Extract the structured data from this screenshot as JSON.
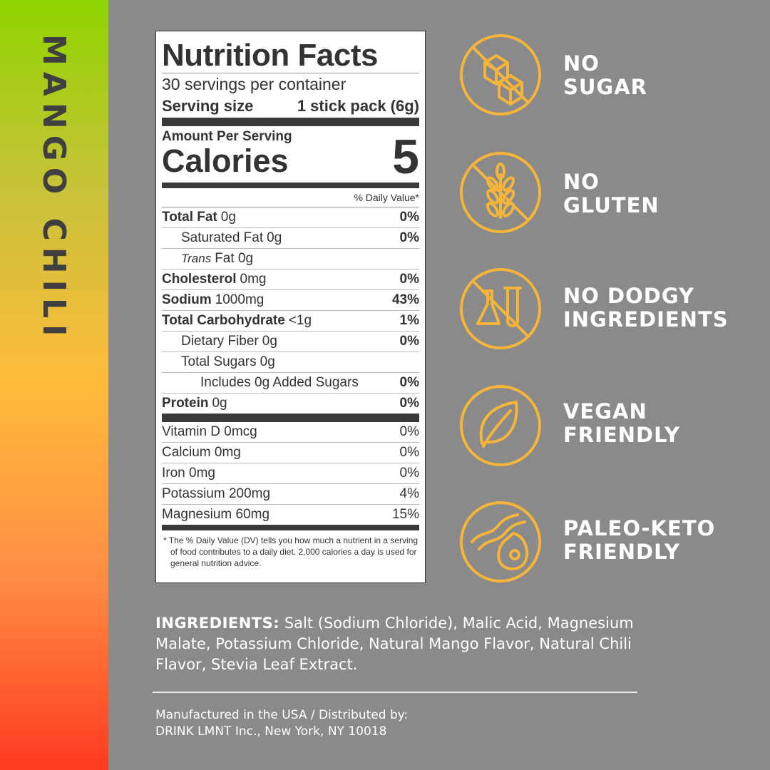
{
  "side_label": "MANGO CHILI",
  "nutrition_facts": {
    "title": "Nutrition Facts",
    "servings": "30 servings per container",
    "serving_size_label": "Serving size",
    "serving_size": "1 stick pack (6g)",
    "amount_per_serving": "Amount Per Serving",
    "calories_label": "Calories",
    "calories": "5",
    "daily_value_header": "% Daily Value*",
    "nutrients": [
      {
        "name": "Total Fat",
        "amount": "0g",
        "dv": "0%"
      },
      {
        "name": "Saturated Fat",
        "amount": "0g",
        "dv": "0%"
      },
      {
        "name": "Trans",
        "amount": "Fat 0g"
      },
      {
        "name": "Cholesterol",
        "amount": "0mg",
        "dv": "0%"
      },
      {
        "name": "Sodium",
        "amount": "1000mg",
        "dv": "43%"
      },
      {
        "name": "Total Carbohydrate",
        "amount": "<1g",
        "dv": "1%"
      },
      {
        "name": "Dietary Fiber",
        "amount": "0g",
        "dv": "0%"
      },
      {
        "name": "Total Sugars",
        "amount": "0g"
      },
      {
        "name": "Includes 0g Added Sugars",
        "dv": "0%"
      },
      {
        "name": "Protein",
        "amount": "0g",
        "dv": "0%"
      }
    ],
    "vitamins": [
      {
        "name": "Vitamin D 0mcg",
        "dv": "0%"
      },
      {
        "name": "Calcium 0mg",
        "dv": "0%"
      },
      {
        "name": "Iron 0mg",
        "dv": "0%"
      },
      {
        "name": "Potassium 200mg",
        "dv": "4%"
      },
      {
        "name": "Magnesium 60mg",
        "dv": "15%"
      }
    ],
    "footnote": "* The % Daily Value (DV) tells you how much a nutrient in a serving of food contributes to a daily diet. 2,000 calories a day is used for general nutrition advice."
  },
  "badges": [
    {
      "lines": [
        "NO",
        "SUGAR"
      ]
    },
    {
      "lines": [
        "NO",
        "GLUTEN"
      ]
    },
    {
      "lines": [
        "NO DODGY",
        "INGREDIENTS"
      ]
    },
    {
      "lines": [
        "VEGAN",
        "FRIENDLY"
      ]
    },
    {
      "lines": [
        "PALEO-KETO",
        "FRIENDLY"
      ]
    }
  ],
  "ingredients": {
    "label": "INGREDIENTS:",
    "text": "Salt (Sodium Chloride), Malic Acid, Magnesium Malate, Potassium Chloride, Natural Mango Flavor, Natural Chili Flavor, Stevia Leaf Extract."
  },
  "manufacturer": {
    "lines": [
      "Manufactured in the USA / Distributed by:",
      "DRINK LMNT Inc., New York, NY 10018"
    ]
  }
}
